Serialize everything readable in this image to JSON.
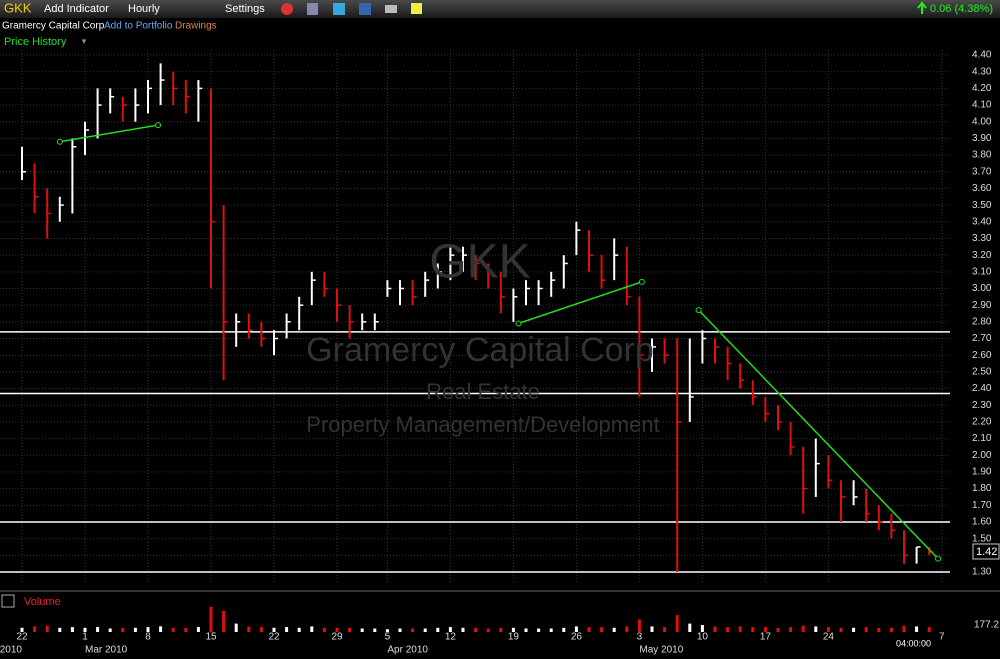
{
  "toolbar": {
    "symbol": "GKK",
    "add_indicator": "Add Indicator",
    "interval": "Hourly",
    "settings": "Settings",
    "change": "0.06 (4.38%)"
  },
  "subbar": {
    "company": "Gramercy Capital Corp",
    "add_to_portfolio": "Add to Portfolio",
    "drawings": "Drawings"
  },
  "panel_title": "Price History",
  "watermark": {
    "symbol": "GKK",
    "company": "Gramercy Capital Corp",
    "sector": "Real Estate",
    "industry": "Property Management/Development"
  },
  "last_price_label": "1.42",
  "volume_panel": {
    "title": "Volume",
    "axis_label": "177.2",
    "time_label": "04:00:00"
  },
  "chart_data": {
    "type": "ohlc",
    "categories": [
      "22",
      null,
      null,
      null,
      null,
      "1",
      null,
      null,
      null,
      null,
      "8",
      null,
      null,
      null,
      null,
      "15",
      null,
      null,
      null,
      null,
      "22",
      null,
      null,
      null,
      null,
      "29",
      null,
      null,
      null,
      "5",
      null,
      null,
      null,
      null,
      "12",
      null,
      null,
      null,
      null,
      "19",
      null,
      null,
      null,
      null,
      "26",
      null,
      null,
      null,
      null,
      "3",
      null,
      null,
      null,
      null,
      "10",
      null,
      null,
      null,
      null,
      "17",
      null,
      null,
      null,
      null,
      "24",
      null,
      null,
      null,
      null,
      null,
      null,
      null,
      null,
      "7"
    ],
    "month_labels": [
      {
        "index": 0,
        "label": "2010"
      },
      {
        "index": 5,
        "label": "Mar 2010"
      },
      {
        "index": 29,
        "label": "Apr 2010"
      },
      {
        "index": 49,
        "label": "May 2010"
      }
    ],
    "high": [
      3.85,
      3.75,
      3.6,
      3.55,
      3.9,
      4.0,
      4.2,
      4.2,
      4.15,
      4.2,
      4.25,
      4.35,
      4.3,
      4.25,
      4.25,
      4.2,
      3.5,
      2.85,
      2.85,
      2.8,
      2.75,
      2.85,
      2.95,
      3.1,
      3.1,
      3.0,
      2.9,
      2.85,
      2.85,
      3.05,
      3.05,
      3.05,
      3.1,
      3.15,
      3.25,
      3.25,
      3.2,
      3.15,
      3.1,
      3.0,
      3.05,
      3.05,
      3.1,
      3.2,
      3.4,
      3.35,
      3.2,
      3.3,
      3.25,
      2.95,
      2.7,
      2.7,
      2.7,
      2.7,
      2.75,
      2.7,
      2.65,
      2.55,
      2.45,
      2.35,
      2.3,
      2.2,
      2.05,
      2.1,
      2.0,
      1.85,
      1.85,
      1.8,
      1.7,
      1.65,
      1.55,
      1.45,
      1.45,
      null
    ],
    "low": [
      3.65,
      3.45,
      3.3,
      3.4,
      3.45,
      3.8,
      3.9,
      4.05,
      4.0,
      4.0,
      4.05,
      4.1,
      4.1,
      4.05,
      4.0,
      3.0,
      2.45,
      2.65,
      2.7,
      2.65,
      2.6,
      2.7,
      2.75,
      2.9,
      2.95,
      2.8,
      2.7,
      2.75,
      2.75,
      2.95,
      2.9,
      2.9,
      2.95,
      3.0,
      3.05,
      3.1,
      3.05,
      3.0,
      2.85,
      2.8,
      2.9,
      2.9,
      2.95,
      3.0,
      3.2,
      3.1,
      3.0,
      3.05,
      2.9,
      2.35,
      2.5,
      2.55,
      1.3,
      2.2,
      2.55,
      2.55,
      2.45,
      2.4,
      2.3,
      2.2,
      2.15,
      2.0,
      1.65,
      1.75,
      1.8,
      1.6,
      1.7,
      1.6,
      1.55,
      1.5,
      1.35,
      1.35,
      1.4,
      null
    ],
    "close": [
      3.7,
      3.55,
      3.45,
      3.5,
      3.85,
      3.95,
      4.1,
      4.15,
      4.1,
      4.1,
      4.2,
      4.25,
      4.2,
      4.15,
      4.2,
      3.4,
      2.8,
      2.8,
      2.75,
      2.7,
      2.7,
      2.8,
      2.9,
      3.05,
      3.0,
      2.9,
      2.8,
      2.8,
      2.8,
      3.0,
      3.0,
      2.95,
      3.05,
      3.1,
      3.2,
      3.2,
      3.15,
      3.1,
      2.95,
      2.95,
      3.0,
      3.0,
      3.05,
      3.15,
      3.35,
      3.2,
      3.05,
      3.2,
      2.95,
      2.6,
      2.65,
      2.6,
      2.2,
      2.35,
      2.7,
      2.65,
      2.55,
      2.45,
      2.35,
      2.25,
      2.2,
      2.05,
      1.8,
      1.95,
      1.85,
      1.75,
      1.75,
      1.65,
      1.6,
      1.55,
      1.4,
      1.45,
      1.42,
      null
    ],
    "volume": [
      30,
      40,
      45,
      30,
      35,
      30,
      35,
      25,
      30,
      30,
      35,
      40,
      30,
      30,
      35,
      180,
      150,
      60,
      40,
      35,
      30,
      35,
      30,
      40,
      30,
      30,
      30,
      25,
      25,
      20,
      25,
      25,
      25,
      30,
      35,
      30,
      30,
      25,
      30,
      30,
      25,
      25,
      25,
      30,
      40,
      35,
      35,
      30,
      40,
      90,
      40,
      35,
      120,
      60,
      50,
      40,
      35,
      40,
      35,
      35,
      30,
      35,
      45,
      40,
      35,
      30,
      30,
      35,
      30,
      30,
      45,
      40,
      35,
      null
    ],
    "ylim": [
      1.25,
      4.45
    ],
    "yticks": [
      {
        "value": 1.3,
        "label": "1.30"
      },
      {
        "value": 1.4,
        "label": "1.40"
      },
      {
        "value": 1.5,
        "label": "1.50"
      },
      {
        "value": 1.6,
        "label": "1.60"
      },
      {
        "value": 1.7,
        "label": "1.70"
      },
      {
        "value": 1.8,
        "label": "1.80"
      },
      {
        "value": 1.9,
        "label": "1.90"
      },
      {
        "value": 2,
        "label": "2.00"
      },
      {
        "value": 2.1,
        "label": "2.10"
      },
      {
        "value": 2.2,
        "label": "2.20"
      },
      {
        "value": 2.3,
        "label": "2.30"
      },
      {
        "value": 2.4,
        "label": "2.40"
      },
      {
        "value": 2.5,
        "label": "2.50"
      },
      {
        "value": 2.6,
        "label": "2.60"
      },
      {
        "value": 2.7,
        "label": "2.70"
      },
      {
        "value": 2.8,
        "label": "2.80"
      },
      {
        "value": 2.9,
        "label": "2.90"
      },
      {
        "value": 3,
        "label": "3.00"
      },
      {
        "value": 3.1,
        "label": "3.10"
      },
      {
        "value": 3.2,
        "label": "3.20"
      },
      {
        "value": 3.3,
        "label": "3.30"
      },
      {
        "value": 3.4,
        "label": "3.40"
      },
      {
        "value": 3.5,
        "label": "3.50"
      },
      {
        "value": 3.6,
        "label": "3.60"
      },
      {
        "value": 3.7,
        "label": "3.70"
      },
      {
        "value": 3.8,
        "label": "3.80"
      },
      {
        "value": 3.9,
        "label": "3.90"
      },
      {
        "value": 4,
        "label": "4.00"
      },
      {
        "value": 4.1,
        "label": "4.10"
      },
      {
        "value": 4.2,
        "label": "4.20"
      },
      {
        "value": 4.3,
        "label": "4.30"
      },
      {
        "value": 4.4,
        "label": "4.40"
      }
    ],
    "horizontal_lines": [
      2.74,
      2.37,
      1.6,
      1.3
    ],
    "trend_lines": [
      {
        "start": [
          3,
          3.88
        ],
        "end": [
          10.8,
          3.98
        ]
      },
      {
        "start": [
          39.4,
          2.79
        ],
        "end": [
          49.2,
          3.04
        ]
      },
      {
        "start": [
          53.7,
          2.87
        ],
        "end": [
          72.7,
          1.38
        ]
      }
    ],
    "colors": {
      "up": "#ffffff",
      "down": "#e01010",
      "trend": "#22dd22",
      "level": "#ffffff"
    }
  }
}
